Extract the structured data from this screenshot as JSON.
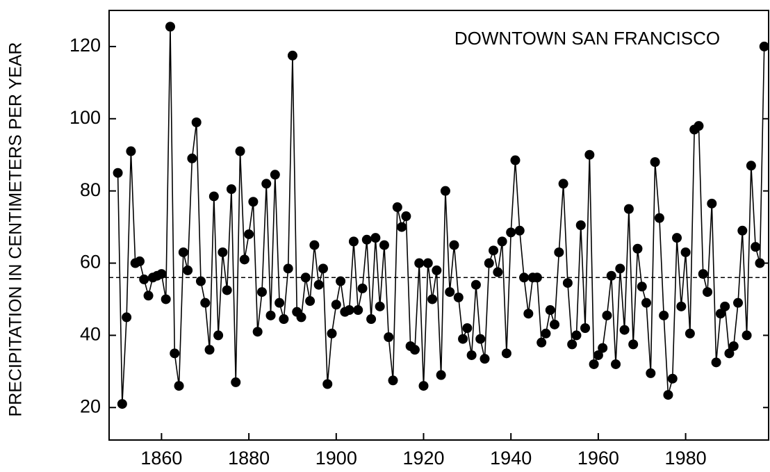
{
  "chart_data": {
    "type": "line",
    "annotation": "DOWNTOWN SAN FRANCISCO",
    "y_label": "PRECIPITATION IN CENTIMETERS PER YEAR",
    "x": [
      1850,
      1851,
      1852,
      1853,
      1854,
      1855,
      1856,
      1857,
      1858,
      1859,
      1860,
      1861,
      1862,
      1863,
      1864,
      1865,
      1866,
      1867,
      1868,
      1869,
      1870,
      1871,
      1872,
      1873,
      1874,
      1875,
      1876,
      1877,
      1878,
      1879,
      1880,
      1881,
      1882,
      1883,
      1884,
      1885,
      1886,
      1887,
      1888,
      1889,
      1890,
      1891,
      1892,
      1893,
      1894,
      1895,
      1896,
      1897,
      1898,
      1899,
      1900,
      1901,
      1902,
      1903,
      1904,
      1905,
      1906,
      1907,
      1908,
      1909,
      1910,
      1911,
      1912,
      1913,
      1914,
      1915,
      1916,
      1917,
      1918,
      1919,
      1920,
      1921,
      1922,
      1923,
      1924,
      1925,
      1926,
      1927,
      1928,
      1929,
      1930,
      1931,
      1932,
      1933,
      1934,
      1935,
      1936,
      1937,
      1938,
      1939,
      1940,
      1941,
      1942,
      1943,
      1944,
      1945,
      1946,
      1947,
      1948,
      1949,
      1950,
      1951,
      1952,
      1953,
      1954,
      1955,
      1956,
      1957,
      1958,
      1959,
      1960,
      1961,
      1962,
      1963,
      1964,
      1965,
      1966,
      1967,
      1968,
      1969,
      1970,
      1971,
      1972,
      1973,
      1974,
      1975,
      1976,
      1977,
      1978,
      1979,
      1980,
      1981,
      1982,
      1983,
      1984,
      1985,
      1986,
      1987,
      1988,
      1989,
      1990,
      1991,
      1992,
      1993,
      1994,
      1995,
      1996,
      1997,
      1998
    ],
    "series": [
      {
        "color": "#000000",
        "values": [
          85,
          21,
          45,
          91,
          60,
          60.5,
          55.5,
          51,
          56,
          56.5,
          57,
          50,
          125.5,
          35,
          26,
          63,
          58,
          89,
          99,
          55,
          49,
          36,
          78.5,
          40,
          63,
          52.5,
          80.5,
          27,
          91,
          61,
          68,
          77,
          41,
          52,
          82,
          45.5,
          84.5,
          49,
          44.5,
          58.5,
          117.5,
          46.5,
          45,
          56,
          49.5,
          65,
          54,
          58.5,
          26.5,
          40.5,
          48.5,
          55,
          46.5,
          47,
          66,
          47,
          53,
          66.5,
          44.5,
          67,
          48,
          65,
          39.5,
          27.5,
          75.5,
          70,
          73,
          37,
          36,
          60,
          26,
          60,
          50,
          58,
          29,
          80,
          52,
          65,
          50.5,
          39,
          42,
          34.5,
          54,
          39,
          33.5,
          60,
          63.5,
          57.5,
          66,
          35,
          68.5,
          88.5,
          69,
          56,
          46,
          56,
          56,
          38,
          40.5,
          47,
          43,
          63,
          82,
          54.5,
          37.5,
          40,
          70.5,
          42,
          90,
          32,
          34.5,
          36.5,
          45.5,
          56.5,
          32,
          58.5,
          41.5,
          75,
          37.5,
          64,
          53.5,
          49,
          29.5,
          88,
          72.5,
          45.5,
          23.5,
          28,
          67,
          48,
          63,
          40.5,
          97,
          98,
          57,
          52,
          76.5,
          32.5,
          46,
          48,
          35,
          37,
          49,
          69,
          40,
          87,
          64.5,
          60,
          120
        ]
      }
    ],
    "reference_line": 56,
    "xlim": [
      1848,
      1999
    ],
    "xticks": [
      1860,
      1880,
      1900,
      1920,
      1940,
      1960,
      1980
    ],
    "ylim": [
      11,
      130
    ],
    "yticks": [
      20,
      40,
      60,
      80,
      100,
      120
    ]
  }
}
